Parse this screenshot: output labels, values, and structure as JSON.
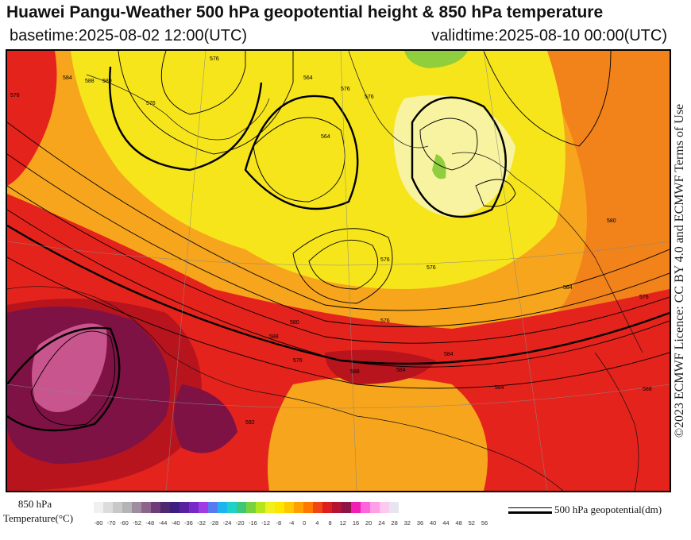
{
  "header": {
    "title": "Huawei Pangu-Weather 500 hPa geopotential height & 850 hPa temperature",
    "basetime": "basetime:2025-08-02 12:00(UTC)",
    "validtime": "validtime:2025-08-10 00:00(UTC)"
  },
  "licence": "©2023 ECMWF Licence: CC BY 4.0 and ECMWF Terms of Use",
  "legend": {
    "temperature_label_line1": "850 hPa",
    "temperature_label_line2": "Temperature(°C)",
    "ticks": [
      "-80",
      "-70",
      "-60",
      "-52",
      "-48",
      "-44",
      "-40",
      "-36",
      "-32",
      "-28",
      "-24",
      "-20",
      "-16",
      "-12",
      "-8",
      "-4",
      "0",
      "4",
      "8",
      "12",
      "16",
      "20",
      "24",
      "28",
      "32",
      "36",
      "40",
      "44",
      "48",
      "52",
      "56"
    ],
    "colors": [
      "#f0f0f0",
      "#dcdcdc",
      "#c8c8c8",
      "#b4b4b4",
      "#a08ca0",
      "#8c648c",
      "#6e3c78",
      "#50286e",
      "#3c1e82",
      "#5a1ea0",
      "#7828c8",
      "#a03ce6",
      "#5a78f0",
      "#1eb4f0",
      "#1ed2c8",
      "#3cc878",
      "#78d23c",
      "#b4e61e",
      "#f0f01e",
      "#ffe600",
      "#ffc800",
      "#ffa000",
      "#ff7800",
      "#f04614",
      "#dc1e1e",
      "#b41432",
      "#8c1446",
      "#f01eb4",
      "#ff64dc",
      "#ffa0e6",
      "#ffc8f0",
      "#e6e6f0"
    ],
    "geopotential_label": "500 hPa geopotential(dm)"
  },
  "map": {
    "contour_labels": [
      "576",
      "584",
      "588",
      "576",
      "576",
      "564",
      "576",
      "576",
      "564",
      "576",
      "576",
      "580",
      "576",
      "584",
      "588",
      "584",
      "588",
      "580",
      "576",
      "584",
      "576",
      "588",
      "592",
      "584",
      "580"
    ],
    "colors": {
      "yellow": "#f7e51c",
      "light_yellow": "#f7f3a0",
      "orange": "#f7a51c",
      "dark_orange": "#f2821a",
      "red": "#e4231c",
      "dark_red": "#b8141e",
      "maroon": "#7e1244",
      "pink": "#c9558e",
      "green": "#8fce3c"
    }
  }
}
